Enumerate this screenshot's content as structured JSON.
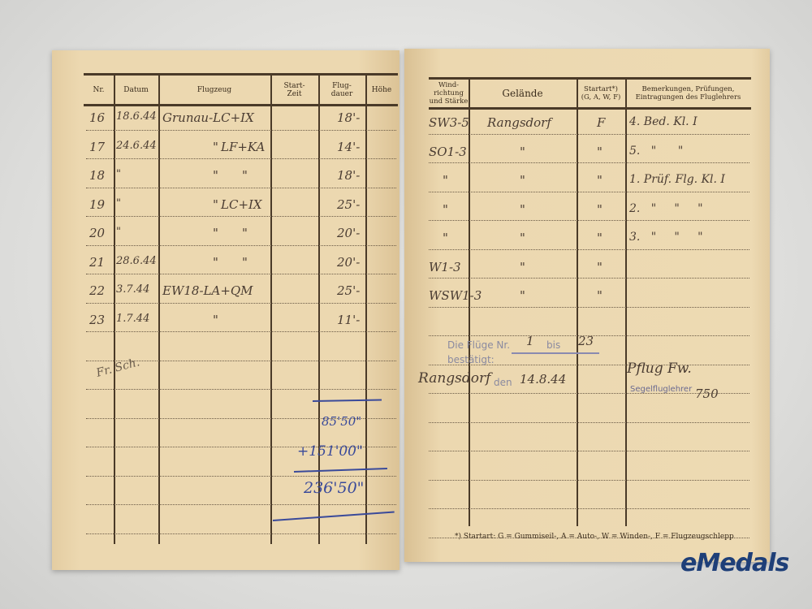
{
  "left_page": {
    "headers": [
      "Nr.",
      "Datum",
      "Flugzeug",
      "Start-\nZeit",
      "Flug-\ndauer",
      "Höhe"
    ],
    "rows": [
      {
        "nr": "16",
        "datum": "18.6.44",
        "flugzeug": "Grunau-LC+IX",
        "kennung": "",
        "dauer": "18'-"
      },
      {
        "nr": "17",
        "datum": "24.6.44",
        "flugzeug": "\"",
        "kennung": "LF+KA",
        "dauer": "14'-"
      },
      {
        "nr": "18",
        "datum": "\"",
        "flugzeug": "\"",
        "kennung": "\"",
        "dauer": "18'-"
      },
      {
        "nr": "19",
        "datum": "\"",
        "flugzeug": "\"",
        "kennung": "LC+IX",
        "dauer": "25'-"
      },
      {
        "nr": "20",
        "datum": "\"",
        "flugzeug": "\"",
        "kennung": "\"",
        "dauer": "20'-"
      },
      {
        "nr": "21",
        "datum": "28.6.44",
        "flugzeug": "\"",
        "kennung": "\"",
        "dauer": "20'-"
      },
      {
        "nr": "22",
        "datum": "3.7.44",
        "flugzeug": "EW18-LA+QM",
        "kennung": "",
        "dauer": "25'-"
      },
      {
        "nr": "23",
        "datum": "1.7.44",
        "flugzeug": "\"",
        "kennung": "",
        "dauer": "11'-"
      }
    ],
    "sum": {
      "line1": "85'50\"",
      "line2": "+151'00\"",
      "total": "236'50\""
    },
    "signature": "Fr. Sch."
  },
  "right_page": {
    "headers": [
      "Wind-\nrichtung\nund Stärke",
      "Gelände",
      "Startart*)\n(G, A, W, F)",
      "Bemerkungen, Prüfungen,\nEintragungen des Fluglehrers"
    ],
    "rows": [
      {
        "wind": "SW3-5",
        "gelaende": "Rangsdorf",
        "startart": "F",
        "bemerkung": "4. Bed. Kl. I"
      },
      {
        "wind": "SO1-3",
        "gelaende": "\"",
        "startart": "\"",
        "bemerkung": "5.   \"      \""
      },
      {
        "wind": "\"",
        "gelaende": "\"",
        "startart": "\"",
        "bemerkung": "1. Prüf. Flg. Kl. I"
      },
      {
        "wind": "\"",
        "gelaende": "\"",
        "startart": "\"",
        "bemerkung": "2.   \"     \"     \""
      },
      {
        "wind": "\"",
        "gelaende": "\"",
        "startart": "\"",
        "bemerkung": "3.   \"     \"     \""
      },
      {
        "wind": "W1-3",
        "gelaende": "\"",
        "startart": "\"",
        "bemerkung": ""
      },
      {
        "wind": "WSW1-3",
        "gelaende": "\"",
        "startart": "\"",
        "bemerkung": ""
      }
    ],
    "certification": {
      "stamp_text": "Die Flüge Nr.",
      "from": "1",
      "bis_label": "bis",
      "to": "23",
      "bestaetigt": "bestätigt:",
      "place": "Rangsdorf",
      "den": "den",
      "date": "14.8.44",
      "signature": "Pflug Fw.",
      "role_stamp": "Segelfluglehrer",
      "number": "750"
    },
    "footnote": "*) Startart: G = Gummiseil-, A = Auto-, W = Winden-, F = Flugzeugschlepp"
  },
  "watermark": {
    "brand": "eMedals",
    "color": "#1e3f78"
  },
  "colors": {
    "paper": "#ebd6ad",
    "ink": "#4a3c32",
    "blue_ink": "#3a4a9a"
  }
}
